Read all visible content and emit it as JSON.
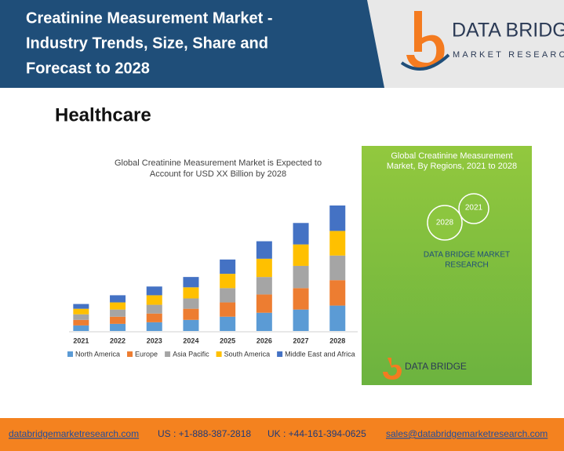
{
  "header": {
    "title_lines": [
      "Creatinine Measurement Market -",
      "Industry Trends, Size, Share and",
      "Forecast to 2028"
    ],
    "logo": {
      "name": "DATA BRIDGE",
      "tagline": "MARKET RESEARCH"
    }
  },
  "section": "Healthcare",
  "chart_data": {
    "type": "stacked_bar",
    "title_lines": [
      "Global Creatinine Measurement Market is Expected to",
      "Account for USD XX Billion by 2028"
    ],
    "categories": [
      "2021",
      "2022",
      "2023",
      "2024",
      "2025",
      "2026",
      "2027",
      "2028"
    ],
    "series": [
      {
        "name": "North America",
        "color": "#5b9bd5",
        "values": [
          7,
          9,
          11,
          14,
          18,
          23,
          27,
          32
        ]
      },
      {
        "name": "Europe",
        "color": "#ed7d31",
        "values": [
          7,
          9,
          11,
          14,
          18,
          23,
          27,
          32
        ]
      },
      {
        "name": "Asia Pacific",
        "color": "#a5a5a5",
        "values": [
          7,
          9,
          11,
          13,
          18,
          22,
          28,
          31
        ]
      },
      {
        "name": "South America",
        "color": "#ffc000",
        "values": [
          7,
          9,
          12,
          14,
          18,
          23,
          27,
          31
        ]
      },
      {
        "name": "Middle East and Africa",
        "color": "#4472c4",
        "values": [
          6,
          9,
          11,
          13,
          18,
          22,
          27,
          32
        ]
      }
    ],
    "legend": "bottom"
  },
  "side_panel": {
    "title_lines": [
      "Global Creatinine Measurement",
      "Market, By Regions, 2021 to 2028"
    ],
    "year_a": "2021",
    "year_b": "2028",
    "brand_lines": [
      "DATA BRIDGE MARKET",
      "RESEARCH"
    ],
    "logo": "DATA BRIDGE"
  },
  "footer": {
    "website": "databridgemarketresearch.com",
    "us_phone": "US : +1-888-387-2818",
    "uk_phone": "UK : +44-161-394-0625",
    "email": "sales@databridgemarketresearch.com"
  }
}
